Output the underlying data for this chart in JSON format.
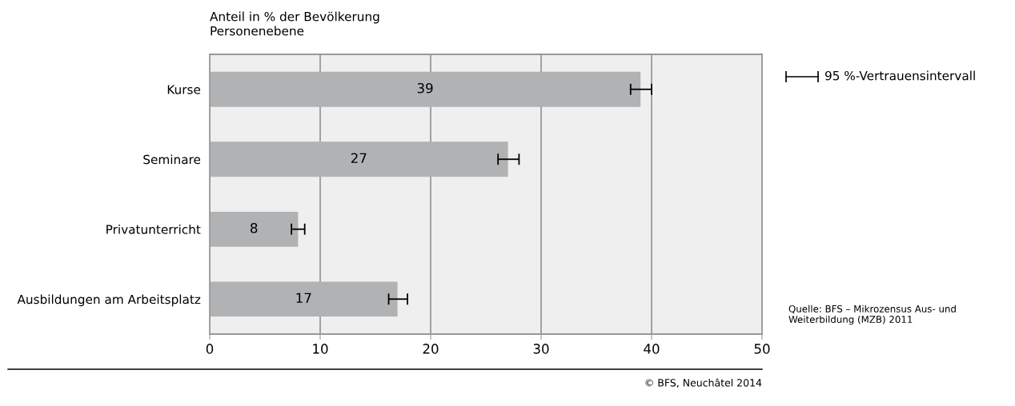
{
  "chart_data": {
    "type": "bar",
    "orientation": "horizontal",
    "title": "Anteil in % der Bevölkerung",
    "subtitle": "Personenebene",
    "categories": [
      "Kurse",
      "Seminare",
      "Privatunterricht",
      "Ausbildungen am Arbeitsplatz"
    ],
    "values": [
      39,
      27,
      8,
      17
    ],
    "color": "#b1b2b4",
    "errors": [
      [
        38.1,
        40.0
      ],
      [
        26.1,
        28.0
      ],
      [
        7.4,
        8.6
      ],
      [
        16.2,
        17.9
      ]
    ],
    "xlim": [
      0,
      50
    ],
    "xticks": [
      0,
      10,
      20,
      30,
      40,
      50
    ],
    "grid": "x",
    "data_labels": true,
    "annotations": [
      "95 %-Vertrauensintervall",
      "Quelle: BFS – Mikrozensus Aus- und Weiterbildung (MZB) 2011",
      "© BFS, Neuchâtel 2014"
    ]
  }
}
